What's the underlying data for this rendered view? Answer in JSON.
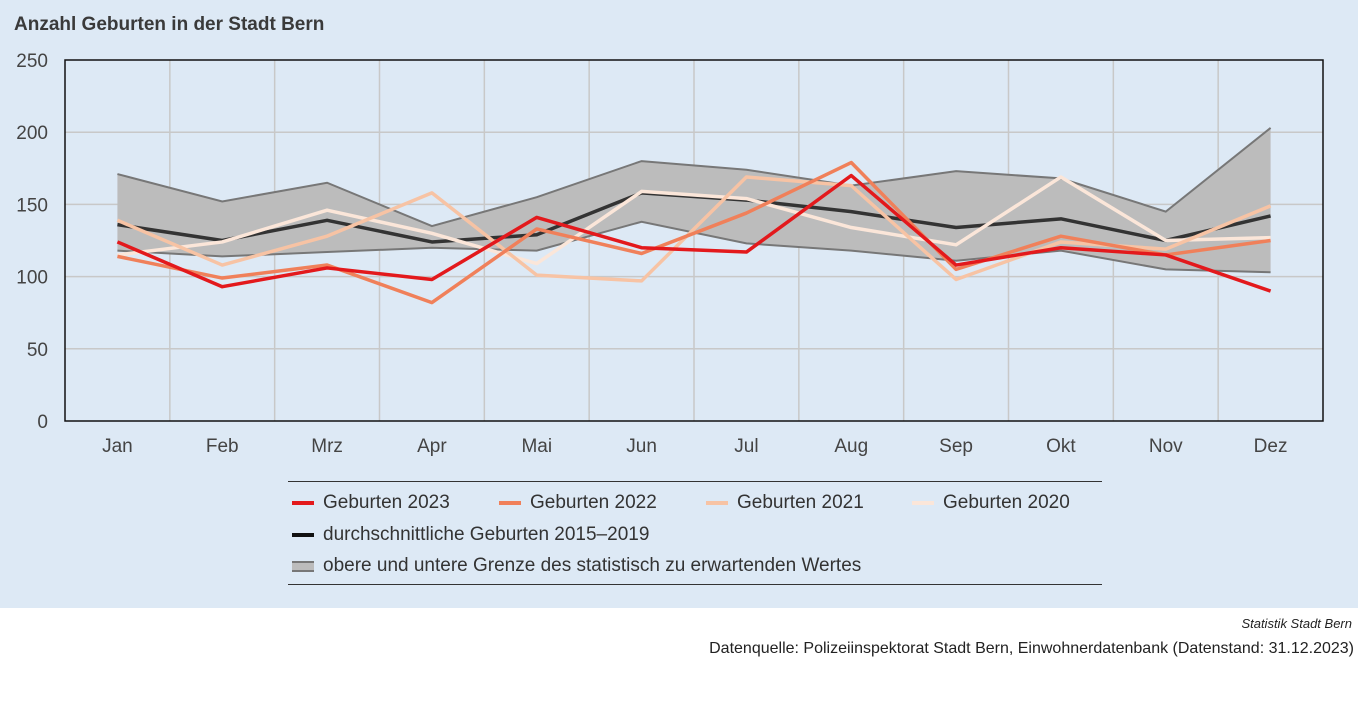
{
  "chart_data": {
    "type": "line",
    "title": "Anzahl Geburten in der Stadt Bern",
    "xlabel": "",
    "ylabel": "",
    "categories": [
      "Jan",
      "Feb",
      "Mrz",
      "Apr",
      "Mai",
      "Jun",
      "Jul",
      "Aug",
      "Sep",
      "Okt",
      "Nov",
      "Dez"
    ],
    "ylim": [
      0,
      250
    ],
    "yticks": [
      0,
      50,
      100,
      150,
      200,
      250
    ],
    "grid": true,
    "band": {
      "name": "obere und untere Grenze des statistisch zu erwartenden Wertes",
      "upper": [
        171,
        152,
        165,
        135,
        155,
        180,
        174,
        163,
        173,
        168,
        145,
        203
      ],
      "lower": [
        118,
        114,
        117,
        120,
        118,
        138,
        123,
        118,
        111,
        118,
        105,
        103
      ],
      "fill_color": "#bcbcbc",
      "edge_color": "#777777"
    },
    "series": [
      {
        "name": "durchschnittliche Geburten 2015–2019",
        "color": "#333333",
        "values": [
          136,
          125,
          139,
          124,
          129,
          158,
          153,
          145,
          134,
          140,
          125,
          142
        ]
      },
      {
        "name": "Geburten 2020",
        "color": "#fbe6d9",
        "values": [
          115,
          124,
          146,
          130,
          109,
          159,
          154,
          134,
          122,
          169,
          125,
          127
        ]
      },
      {
        "name": "Geburten 2021",
        "color": "#f7c3a4",
        "values": [
          139,
          108,
          128,
          158,
          101,
          97,
          169,
          163,
          98,
          124,
          119,
          149
        ]
      },
      {
        "name": "Geburten 2022",
        "color": "#f0805a",
        "values": [
          114,
          99,
          108,
          82,
          133,
          116,
          144,
          179,
          105,
          128,
          115,
          125
        ]
      },
      {
        "name": "Geburten 2023",
        "color": "#e3191c",
        "values": [
          124,
          93,
          106,
          98,
          141,
          120,
          117,
          170,
          108,
          120,
          115,
          90
        ]
      }
    ]
  },
  "legend": {
    "row1": [
      {
        "label": "Geburten 2023",
        "color": "#e3191c"
      },
      {
        "label": "Geburten 2022",
        "color": "#f0805a"
      },
      {
        "label": "Geburten 2021",
        "color": "#f7c3a4"
      },
      {
        "label": "Geburten 2020",
        "color": "#fbe6d9"
      }
    ],
    "avg_label": "durchschnittliche Geburten 2015–2019",
    "avg_color": "#111111",
    "band_label": "obere und untere Grenze des statistisch zu erwartenden Wertes"
  },
  "footer": {
    "org": "Statistik Stadt Bern",
    "source": "Datenquelle: Polizeiinspektorat Stadt Bern, Einwohnerdatenbank (Datenstand: 31.12.2023)"
  }
}
